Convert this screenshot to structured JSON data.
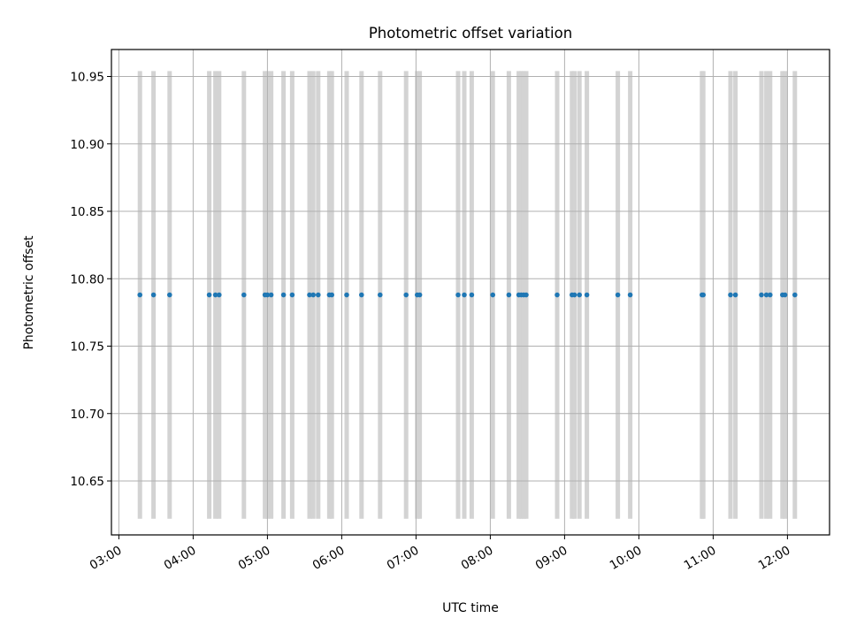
{
  "chart_data": {
    "type": "scatter",
    "title": "Photometric offset variation",
    "xlabel": "UTC time",
    "ylabel": "Photometric offset",
    "x_axis_type": "time",
    "xlim": [
      "02:54",
      "12:34"
    ],
    "ylim": [
      10.61,
      10.97
    ],
    "grid": true,
    "x_ticks": [
      "03:00",
      "04:00",
      "05:00",
      "06:00",
      "07:00",
      "08:00",
      "09:00",
      "10:00",
      "11:00",
      "12:00"
    ],
    "y_ticks": [
      "10.65",
      "10.70",
      "10.75",
      "10.80",
      "10.85",
      "10.90",
      "10.95"
    ],
    "y_tick_values": [
      10.65,
      10.7,
      10.75,
      10.8,
      10.85,
      10.9,
      10.95
    ],
    "colors": {
      "points": "#1f77b4",
      "bars": "#d3d3d3",
      "grid": "#b0b0b0"
    },
    "series": [
      {
        "type": "scatter",
        "x": [
          "03:17",
          "03:28",
          "03:41",
          "04:13",
          "04:18",
          "04:21",
          "04:41",
          "04:58",
          "05:00",
          "05:03",
          "05:13",
          "05:20",
          "05:34",
          "05:37",
          "05:41",
          "05:50",
          "05:52",
          "06:04",
          "06:16",
          "06:31",
          "06:52",
          "07:01",
          "07:03",
          "07:34",
          "07:39",
          "07:45",
          "08:02",
          "08:15",
          "08:23",
          "08:25",
          "08:27",
          "08:29",
          "08:54",
          "09:06",
          "09:08",
          "09:12",
          "09:18",
          "09:43",
          "09:53",
          "10:51",
          "10:52",
          "11:14",
          "11:18",
          "11:39",
          "11:43",
          "11:46",
          "11:56",
          "11:58",
          "12:06"
        ],
        "y": [
          10.788,
          10.788,
          10.788,
          10.788,
          10.788,
          10.788,
          10.788,
          10.788,
          10.788,
          10.788,
          10.788,
          10.788,
          10.788,
          10.788,
          10.788,
          10.788,
          10.788,
          10.788,
          10.788,
          10.788,
          10.788,
          10.788,
          10.788,
          10.788,
          10.788,
          10.788,
          10.788,
          10.788,
          10.788,
          10.788,
          10.788,
          10.788,
          10.788,
          10.788,
          10.788,
          10.788,
          10.788,
          10.788,
          10.788,
          10.788,
          10.788,
          10.788,
          10.788,
          10.788,
          10.788,
          10.788,
          10.788,
          10.788,
          10.788
        ]
      },
      {
        "type": "vertical-bars",
        "x": [
          "03:17",
          "03:28",
          "03:41",
          "04:13",
          "04:18",
          "04:21",
          "04:41",
          "04:58",
          "05:00",
          "05:03",
          "05:13",
          "05:20",
          "05:34",
          "05:37",
          "05:41",
          "05:50",
          "05:52",
          "06:04",
          "06:16",
          "06:31",
          "06:52",
          "07:01",
          "07:03",
          "07:34",
          "07:39",
          "07:45",
          "08:02",
          "08:15",
          "08:23",
          "08:25",
          "08:27",
          "08:29",
          "08:54",
          "09:06",
          "09:08",
          "09:12",
          "09:18",
          "09:43",
          "09:53",
          "10:51",
          "10:52",
          "11:14",
          "11:18",
          "11:39",
          "11:43",
          "11:46",
          "11:56",
          "11:58",
          "12:06"
        ],
        "y_range": [
          10.622,
          10.954
        ]
      }
    ]
  }
}
